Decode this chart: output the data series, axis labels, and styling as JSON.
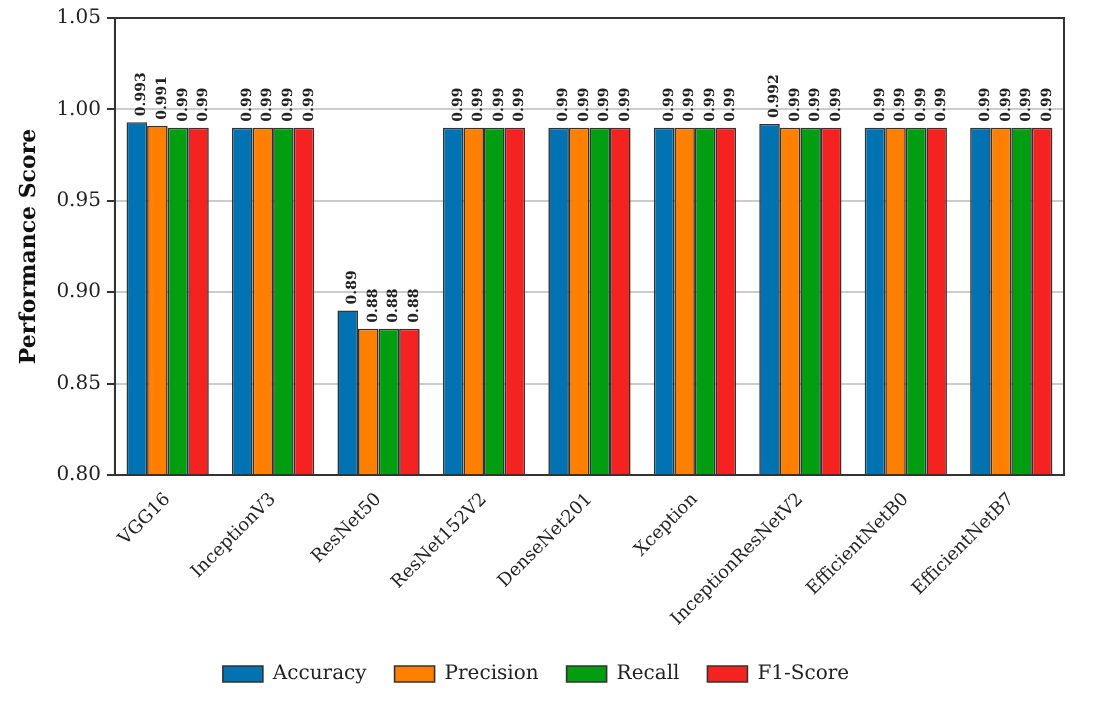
{
  "chart_data": {
    "type": "bar",
    "ylabel": "Performance Score",
    "categories": [
      "VGG16",
      "InceptionV3",
      "ResNet50",
      "ResNet152V2",
      "DenseNet201",
      "Xception",
      "InceptionResNetV2",
      "EfficientNetB0",
      "EfficientNetB7"
    ],
    "series": [
      {
        "name": "Accuracy",
        "color": "#0173b2",
        "values": [
          0.993,
          0.99,
          0.89,
          0.99,
          0.99,
          0.99,
          0.992,
          0.99,
          0.99
        ]
      },
      {
        "name": "Precision",
        "color": "#ff7f00",
        "values": [
          0.991,
          0.99,
          0.88,
          0.99,
          0.99,
          0.99,
          0.99,
          0.99,
          0.99
        ]
      },
      {
        "name": "Recall",
        "color": "#029e11",
        "values": [
          0.99,
          0.99,
          0.88,
          0.99,
          0.99,
          0.99,
          0.99,
          0.99,
          0.99
        ]
      },
      {
        "name": "F1-Score",
        "color": "#f52222",
        "values": [
          0.99,
          0.99,
          0.88,
          0.99,
          0.99,
          0.99,
          0.99,
          0.99,
          0.99
        ]
      }
    ],
    "ylim": [
      0.8,
      1.05
    ],
    "yticks": [
      {
        "value": 0.8,
        "label": "0.80"
      },
      {
        "value": 0.85,
        "label": "0.85"
      },
      {
        "value": 0.9,
        "label": "0.90"
      },
      {
        "value": 0.95,
        "label": "0.95"
      },
      {
        "value": 1.0,
        "label": "1.00"
      },
      {
        "value": 1.05,
        "label": "1.05"
      }
    ],
    "grid": "y",
    "legend": "bottom",
    "data_labels": true
  }
}
